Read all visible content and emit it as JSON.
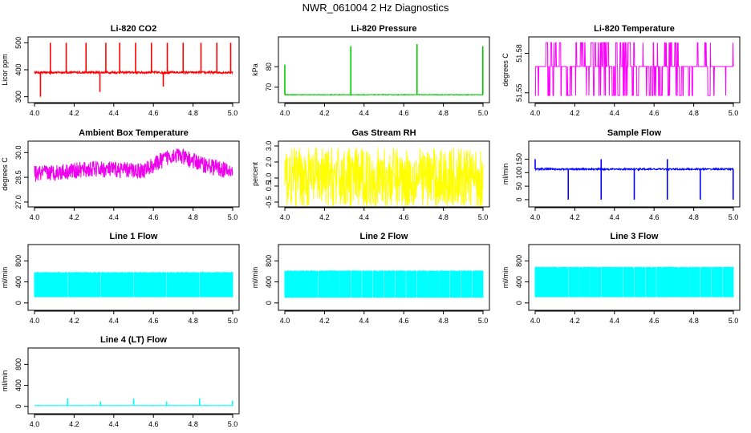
{
  "title": "NWR_061004  2 Hz Diagnostics",
  "chart_data": [
    {
      "id": "co2",
      "type": "line",
      "title": "Li-820 CO2",
      "ylabel": "Licor ppm",
      "xlim": [
        4.0,
        5.0
      ],
      "ylim": [
        290,
        510
      ],
      "xticks": [
        4.0,
        4.2,
        4.4,
        4.6,
        4.8,
        5.0
      ],
      "xtick_labels": [
        "4.0",
        "4.2",
        "4.4",
        "4.6",
        "4.8",
        "5.0"
      ],
      "yticks": [
        300,
        400,
        500
      ],
      "ytick_labels": [
        "300",
        "400",
        "500"
      ],
      "color": "#ff0000",
      "series": [
        {
          "name": "CO2",
          "baseline": 390,
          "noise": 4,
          "spikes": [
            [
              4.03,
              300
            ],
            [
              4.08,
              500
            ],
            [
              4.16,
              500
            ],
            [
              4.26,
              500
            ],
            [
              4.33,
              318
            ],
            [
              4.36,
              500
            ],
            [
              4.43,
              500
            ],
            [
              4.51,
              500
            ],
            [
              4.59,
              500
            ],
            [
              4.65,
              338
            ],
            [
              4.67,
              500
            ],
            [
              4.75,
              500
            ],
            [
              4.84,
              500
            ],
            [
              4.92,
              500
            ],
            [
              4.99,
              500
            ]
          ]
        }
      ]
    },
    {
      "id": "pressure",
      "type": "line",
      "title": "Li-820 Pressure",
      "ylabel": "kPa",
      "xlim": [
        4.0,
        5.0
      ],
      "ylim": [
        64,
        93
      ],
      "xticks": [
        4.0,
        4.2,
        4.4,
        4.6,
        4.8,
        5.0
      ],
      "xtick_labels": [
        "4.0",
        "4.2",
        "4.4",
        "4.6",
        "4.8",
        "5.0"
      ],
      "yticks": [
        70,
        80
      ],
      "ytick_labels": [
        "70",
        "80"
      ],
      "color": "#00cc00",
      "series": [
        {
          "name": "Pressure",
          "baseline": 66.3,
          "noise": 0.15,
          "spikes": [
            [
              4.0,
              81
            ],
            [
              4.333,
              90
            ],
            [
              4.667,
              91
            ],
            [
              4.999,
              90
            ]
          ]
        }
      ]
    },
    {
      "id": "licor-temp",
      "type": "line",
      "title": "Li-820 Temperature",
      "ylabel": "degrees C",
      "xlim": [
        4.0,
        5.0
      ],
      "ylim": [
        51.545,
        51.59
      ],
      "xticks": [
        4.0,
        4.2,
        4.4,
        4.6,
        4.8,
        5.0
      ],
      "xtick_labels": [
        "4.0",
        "4.2",
        "4.4",
        "4.6",
        "4.8",
        "5.0"
      ],
      "yticks": [
        51.55,
        51.58
      ],
      "ytick_labels": [
        "51.55",
        "51.58"
      ],
      "color": "#ff00ff",
      "series": [
        {
          "name": "Temperature",
          "levels": [
            51.548,
            51.57,
            51.588
          ],
          "pattern": "quantized"
        }
      ]
    },
    {
      "id": "ambient-temp",
      "type": "line",
      "title": "Ambient Box Temperature",
      "ylabel": "degrees C",
      "xlim": [
        4.0,
        5.0
      ],
      "ylim": [
        26.9,
        30.5
      ],
      "xticks": [
        4.0,
        4.2,
        4.4,
        4.6,
        4.8,
        5.0
      ],
      "xtick_labels": [
        "4.0",
        "4.2",
        "4.4",
        "4.6",
        "4.8",
        "5.0"
      ],
      "yticks": [
        27.0,
        28.5,
        30.0
      ],
      "ytick_labels": [
        "27.0",
        "28.5",
        "30.0"
      ],
      "color": "#ee00ee",
      "series": [
        {
          "name": "Ambient",
          "trend": [
            [
              4.0,
              28.7
            ],
            [
              4.3,
              29.0
            ],
            [
              4.55,
              28.9
            ],
            [
              4.7,
              29.9
            ],
            [
              4.85,
              29.3
            ],
            [
              5.0,
              28.8
            ]
          ],
          "noise": 0.5
        }
      ]
    },
    {
      "id": "rh",
      "type": "line",
      "title": "Gas Stream RH",
      "ylabel": "percent",
      "xlim": [
        4.0,
        5.0
      ],
      "ylim": [
        -0.6,
        3.1
      ],
      "xticks": [
        4.0,
        4.2,
        4.4,
        4.6,
        4.8,
        5.0
      ],
      "xtick_labels": [
        "4.0",
        "4.2",
        "4.4",
        "4.6",
        "4.8",
        "5.0"
      ],
      "yticks": [
        -0.5,
        0.5,
        1.0,
        2.0,
        3.0
      ],
      "ytick_labels": [
        "-0.5",
        "0.5",
        "1.0",
        "2.0",
        "3.0"
      ],
      "color": "#ffff00",
      "series": [
        {
          "name": "RH",
          "baseline": 1.0,
          "noise": 1.9
        }
      ]
    },
    {
      "id": "sample-flow",
      "type": "line",
      "title": "Sample Flow",
      "ylabel": "ml/min",
      "xlim": [
        4.0,
        5.0
      ],
      "ylim": [
        -15,
        205
      ],
      "xticks": [
        4.0,
        4.2,
        4.4,
        4.6,
        4.8,
        5.0
      ],
      "xtick_labels": [
        "4.0",
        "4.2",
        "4.4",
        "4.6",
        "4.8",
        "5.0"
      ],
      "yticks": [
        0,
        50,
        100,
        150
      ],
      "ytick_labels": [
        "0",
        "50",
        "100",
        "150"
      ],
      "color": "#0000ff",
      "series": [
        {
          "name": "Sample",
          "baseline": 113,
          "noise": 3,
          "spikes": [
            [
              4.0,
              150
            ],
            [
              4.167,
              0
            ],
            [
              4.333,
              150
            ],
            [
              4.333,
              0
            ],
            [
              4.5,
              0
            ],
            [
              4.667,
              150
            ],
            [
              4.667,
              0
            ],
            [
              4.833,
              0
            ],
            [
              4.999,
              0
            ]
          ]
        }
      ]
    },
    {
      "id": "line1",
      "type": "area",
      "title": "Line 1 Flow",
      "ylabel": "ml/min",
      "xlim": [
        4.0,
        5.0
      ],
      "ylim": [
        -80,
        1050
      ],
      "xticks": [
        4.0,
        4.2,
        4.4,
        4.6,
        4.8,
        5.0
      ],
      "xtick_labels": [
        "4.0",
        "4.2",
        "4.4",
        "4.6",
        "4.8",
        "5.0"
      ],
      "yticks": [
        0,
        400,
        800
      ],
      "ytick_labels": [
        "0",
        "400",
        "800"
      ],
      "color": "#00ffff",
      "series": [
        {
          "name": "Line 1",
          "low": 110,
          "high": 580,
          "gaps": [
            4.167,
            4.333,
            4.5,
            4.667,
            4.833
          ]
        }
      ]
    },
    {
      "id": "line2",
      "type": "area",
      "title": "Line 2 Flow",
      "ylabel": "ml/min",
      "xlim": [
        4.0,
        5.0
      ],
      "ylim": [
        -80,
        1050
      ],
      "xticks": [
        4.0,
        4.2,
        4.4,
        4.6,
        4.8,
        5.0
      ],
      "xtick_labels": [
        "4.0",
        "4.2",
        "4.4",
        "4.6",
        "4.8",
        "5.0"
      ],
      "yticks": [
        0,
        400,
        800
      ],
      "ytick_labels": [
        "0",
        "400",
        "800"
      ],
      "color": "#00ffff",
      "series": [
        {
          "name": "Line 2",
          "low": 100,
          "high": 610,
          "gaps": [
            4.167,
            4.222,
            4.278,
            4.333,
            4.389,
            4.444,
            4.5,
            4.556,
            4.611,
            4.667,
            4.722,
            4.778,
            4.833,
            4.889,
            4.944
          ]
        }
      ]
    },
    {
      "id": "line3",
      "type": "area",
      "title": "Line 3 Flow",
      "ylabel": "ml/min",
      "xlim": [
        4.0,
        5.0
      ],
      "ylim": [
        -80,
        1050
      ],
      "xticks": [
        4.0,
        4.2,
        4.4,
        4.6,
        4.8,
        5.0
      ],
      "xtick_labels": [
        "4.0",
        "4.2",
        "4.4",
        "4.6",
        "4.8",
        "5.0"
      ],
      "yticks": [
        0,
        400,
        800
      ],
      "ytick_labels": [
        "0",
        "400",
        "800"
      ],
      "color": "#00ffff",
      "series": [
        {
          "name": "Line 3",
          "low": 110,
          "high": 680,
          "gaps": [
            4.167,
            4.222,
            4.278,
            4.333,
            4.444,
            4.5,
            4.556,
            4.611,
            4.722,
            4.778,
            4.833,
            4.889,
            4.944
          ]
        }
      ]
    },
    {
      "id": "line4",
      "type": "line",
      "title": "Line 4 (LT) Flow",
      "ylabel": "ml/min",
      "xlim": [
        4.0,
        5.0
      ],
      "ylim": [
        -80,
        1050
      ],
      "xticks": [
        4.0,
        4.2,
        4.4,
        4.6,
        4.8,
        5.0
      ],
      "xtick_labels": [
        "4.0",
        "4.2",
        "4.4",
        "4.6",
        "4.8",
        "5.0"
      ],
      "yticks": [
        0,
        400,
        800
      ],
      "ytick_labels": [
        "0",
        "400",
        "800"
      ],
      "color": "#00ffff",
      "series": [
        {
          "name": "Line 4",
          "baseline": 15,
          "noise": 3,
          "spikes": [
            [
              4.167,
              150
            ],
            [
              4.333,
              90
            ],
            [
              4.5,
              150
            ],
            [
              4.667,
              90
            ],
            [
              4.833,
              150
            ],
            [
              4.999,
              110
            ]
          ]
        }
      ]
    }
  ]
}
